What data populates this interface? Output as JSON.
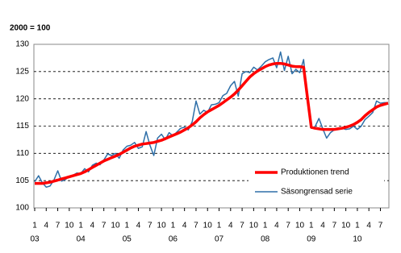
{
  "chart_data": {
    "type": "line",
    "ylabel": "2000 = 100",
    "categories": [
      "1",
      null,
      null,
      "4",
      null,
      null,
      "7",
      null,
      null,
      "10",
      null,
      null,
      "1",
      null,
      null,
      "4",
      null,
      null,
      "7",
      null,
      null,
      "10",
      null,
      null,
      "1",
      null,
      null,
      "4",
      null,
      null,
      "7",
      null,
      null,
      "10",
      null,
      null,
      "1",
      null,
      null,
      "4",
      null,
      null,
      "7",
      null,
      null,
      "10",
      null,
      null,
      "1",
      null,
      null,
      "4",
      null,
      null,
      "7",
      null,
      null,
      "10",
      null,
      null,
      "1",
      null,
      null,
      "4",
      null,
      null,
      "7",
      null,
      null,
      "10",
      null,
      null,
      "1",
      null,
      null,
      "4",
      null,
      null,
      "7",
      null,
      null,
      "10",
      null,
      null,
      "1",
      null,
      null,
      "4",
      null,
      null,
      "7",
      null,
      null
    ],
    "groups": [
      "03",
      "04",
      "05",
      "06",
      "07",
      "08",
      "09",
      "10"
    ],
    "series": [
      {
        "name": "Säsongrensad serie",
        "color": "#2e6fa8",
        "width": 1.5,
        "values": [
          104.8,
          105.9,
          104.6,
          103.8,
          104.0,
          105.1,
          106.8,
          104.9,
          105.2,
          105.8,
          106.0,
          106.4,
          106.3,
          107.2,
          106.6,
          107.8,
          108.2,
          107.9,
          108.8,
          109.9,
          109.6,
          110.0,
          109.1,
          110.6,
          111.3,
          111.5,
          112.0,
          110.9,
          111.2,
          114.0,
          111.5,
          109.6,
          112.8,
          113.5,
          112.5,
          113.8,
          113.2,
          113.9,
          114.6,
          114.8,
          114.3,
          115.8,
          119.6,
          117.2,
          117.9,
          117.5,
          118.9,
          119.0,
          119.3,
          120.6,
          121.0,
          122.4,
          123.2,
          120.5,
          124.6,
          125.0,
          124.8,
          125.8,
          125.3,
          126.0,
          126.8,
          127.2,
          127.5,
          125.7,
          128.6,
          125.2,
          127.8,
          124.6,
          125.4,
          124.8,
          127.2,
          120.5,
          114.6,
          114.9,
          116.4,
          114.5,
          112.8,
          113.8,
          114.3,
          114.5,
          114.6,
          114.4,
          114.5,
          115.0,
          114.4,
          115.0,
          116.2,
          116.8,
          117.5,
          119.6,
          119.2,
          119.3,
          119.3
        ]
      },
      {
        "name": "Produktionen trend",
        "color": "#ff0000",
        "width": 3.5,
        "values": [
          104.5,
          104.5,
          104.5,
          104.6,
          104.7,
          104.9,
          105.1,
          105.3,
          105.5,
          105.7,
          105.9,
          106.1,
          106.3,
          106.6,
          107.0,
          107.4,
          107.8,
          108.2,
          108.6,
          108.9,
          109.2,
          109.5,
          109.8,
          110.2,
          110.6,
          111.0,
          111.3,
          111.5,
          111.7,
          111.8,
          111.9,
          112.0,
          112.2,
          112.4,
          112.7,
          113.0,
          113.3,
          113.6,
          113.9,
          114.3,
          114.7,
          115.2,
          115.8,
          116.5,
          117.1,
          117.6,
          118.0,
          118.4,
          118.8,
          119.3,
          119.8,
          120.3,
          120.9,
          121.6,
          122.4,
          123.2,
          124.0,
          124.6,
          125.1,
          125.5,
          125.9,
          126.2,
          126.4,
          126.5,
          126.5,
          126.4,
          126.2,
          126.0,
          125.9,
          125.9,
          125.8,
          120.3,
          114.8,
          114.6,
          114.5,
          114.4,
          114.4,
          114.4,
          114.4,
          114.5,
          114.6,
          114.8,
          115.0,
          115.3,
          115.7,
          116.2,
          116.9,
          117.5,
          118.0,
          118.5,
          118.8,
          119.0,
          119.2
        ]
      }
    ],
    "ylim": [
      100,
      130
    ],
    "yticks": [
      100,
      105,
      110,
      115,
      120,
      125,
      130
    ],
    "grid": true,
    "legend": "lower right"
  }
}
